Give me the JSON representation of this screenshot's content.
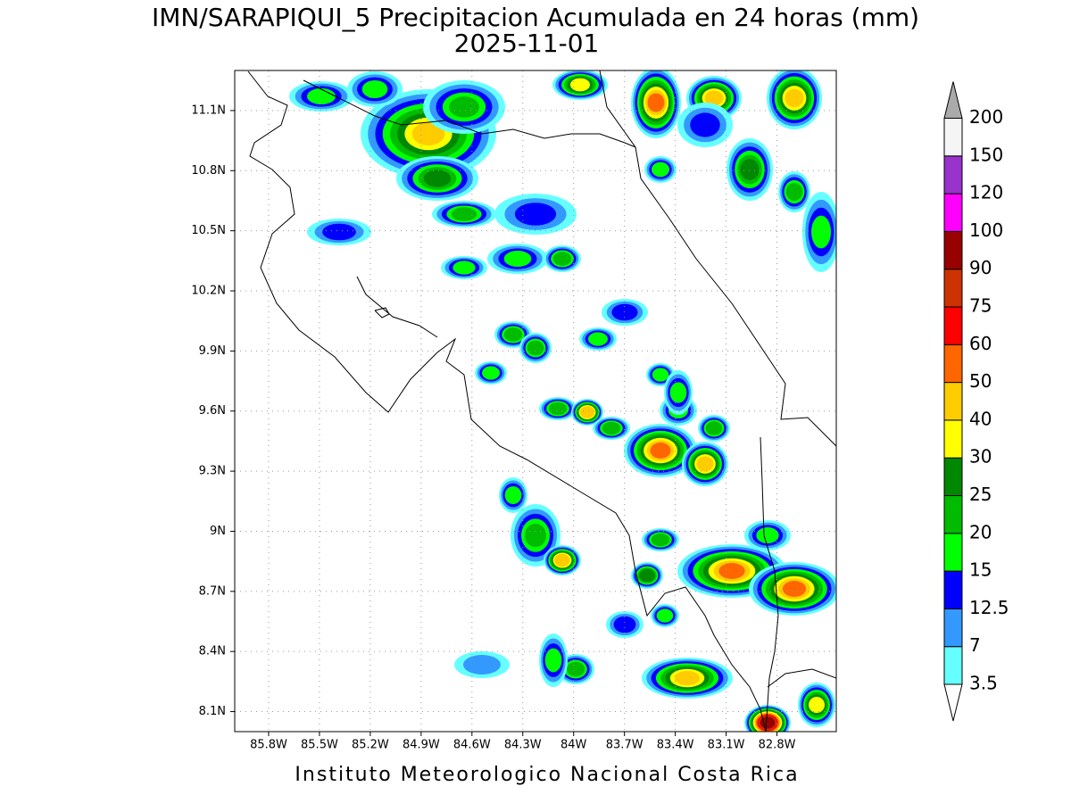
{
  "title": "IMN/SARAPIQUI_5 Precipitacion Acumulada en 24 horas (mm)",
  "subtitle": "2025-11-01",
  "footer": "Instituto Meteorologico Nacional Costa Rica",
  "map": {
    "xlim": [
      -86.0,
      -82.45
    ],
    "ylim": [
      8.0,
      11.3
    ],
    "xticks": [
      {
        "value": -85.8,
        "label": "85.8W"
      },
      {
        "value": -85.5,
        "label": "85.5W"
      },
      {
        "value": -85.2,
        "label": "85.2W"
      },
      {
        "value": -84.9,
        "label": "84.9W"
      },
      {
        "value": -84.6,
        "label": "84.6W"
      },
      {
        "value": -84.3,
        "label": "84.3W"
      },
      {
        "value": -84.0,
        "label": "84W"
      },
      {
        "value": -83.7,
        "label": "83.7W"
      },
      {
        "value": -83.4,
        "label": "83.4W"
      },
      {
        "value": -83.1,
        "label": "83.1W"
      },
      {
        "value": -82.8,
        "label": "82.8W"
      }
    ],
    "yticks": [
      {
        "value": 8.1,
        "label": "8.1N"
      },
      {
        "value": 8.4,
        "label": "8.4N"
      },
      {
        "value": 8.7,
        "label": "8.7N"
      },
      {
        "value": 9.0,
        "label": "9N"
      },
      {
        "value": 9.3,
        "label": "9.3N"
      },
      {
        "value": 9.6,
        "label": "9.6N"
      },
      {
        "value": 9.9,
        "label": "9.9N"
      },
      {
        "value": 10.2,
        "label": "10.2N"
      },
      {
        "value": 10.5,
        "label": "10.5N"
      },
      {
        "value": 10.8,
        "label": "10.8N"
      },
      {
        "value": 11.1,
        "label": "11.1N"
      }
    ],
    "grid": true
  },
  "colorbar": {
    "levels": [
      3.5,
      7,
      12.5,
      15,
      20,
      25,
      30,
      40,
      50,
      60,
      75,
      90,
      100,
      120,
      150,
      200
    ],
    "colors": [
      "#ffffff",
      "#66ffff",
      "#3399ff",
      "#0000ff",
      "#00ff00",
      "#00bb00",
      "#008800",
      "#ffff00",
      "#ffcc00",
      "#ff6600",
      "#ff0000",
      "#cc3300",
      "#990000",
      "#ff00ff",
      "#9933cc",
      "#f5f5f5",
      "#aaaaaa"
    ]
  }
}
